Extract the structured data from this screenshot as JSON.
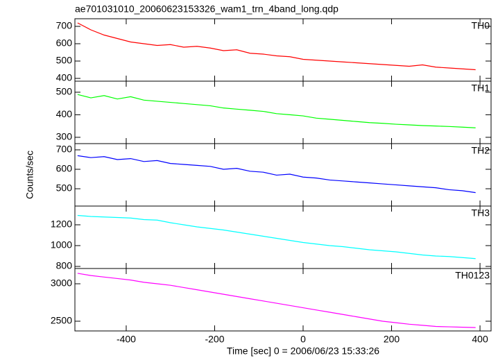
{
  "chart_data": [
    {
      "type": "line",
      "title": "ae701031010_20060623153326_wam1_trn_4band_long.qdp",
      "label": "TH0",
      "color": "#ff0000",
      "x": [
        -510,
        -480,
        -450,
        -420,
        -390,
        -360,
        -330,
        -300,
        -270,
        -240,
        -210,
        -180,
        -150,
        -120,
        -90,
        -60,
        -30,
        0,
        30,
        60,
        90,
        120,
        150,
        180,
        210,
        240,
        270,
        300,
        330,
        360,
        390
      ],
      "values": [
        720,
        680,
        650,
        630,
        610,
        600,
        590,
        595,
        580,
        585,
        575,
        560,
        565,
        545,
        540,
        530,
        525,
        510,
        505,
        500,
        495,
        490,
        485,
        480,
        475,
        470,
        478,
        465,
        460,
        455,
        450
      ],
      "xlim": [
        -516,
        425
      ],
      "xticks": [
        -400,
        -200,
        0,
        200,
        400
      ],
      "ylim": [
        384,
        744
      ],
      "yticks": [
        400,
        500,
        600,
        700
      ]
    },
    {
      "type": "line",
      "label": "TH1",
      "color": "#00ff00",
      "x": [
        -510,
        -480,
        -450,
        -420,
        -390,
        -360,
        -330,
        -300,
        -270,
        -240,
        -210,
        -180,
        -150,
        -120,
        -90,
        -60,
        -30,
        0,
        30,
        60,
        90,
        120,
        150,
        180,
        210,
        240,
        270,
        300,
        330,
        360,
        390
      ],
      "values": [
        490,
        475,
        485,
        470,
        480,
        465,
        460,
        455,
        450,
        445,
        440,
        430,
        425,
        420,
        415,
        405,
        400,
        395,
        385,
        380,
        375,
        370,
        365,
        362,
        358,
        355,
        352,
        350,
        348,
        345,
        342
      ],
      "xlim": [
        -516,
        425
      ],
      "xticks": [
        -400,
        -200,
        0,
        200,
        400
      ],
      "ylim": [
        272,
        549
      ],
      "yticks": [
        300,
        400,
        500
      ]
    },
    {
      "type": "line",
      "label": "TH2",
      "color": "#0000ff",
      "y_label": "Counts/sec",
      "x": [
        -510,
        -480,
        -450,
        -420,
        -390,
        -360,
        -330,
        -300,
        -270,
        -240,
        -210,
        -180,
        -150,
        -120,
        -90,
        -60,
        -30,
        0,
        30,
        60,
        90,
        120,
        150,
        180,
        210,
        240,
        270,
        300,
        330,
        360,
        390
      ],
      "values": [
        670,
        660,
        665,
        650,
        655,
        640,
        645,
        630,
        625,
        620,
        615,
        600,
        605,
        590,
        585,
        570,
        575,
        560,
        555,
        545,
        540,
        535,
        530,
        525,
        520,
        515,
        510,
        505,
        495,
        490,
        480
      ],
      "xlim": [
        -516,
        425
      ],
      "xticks": [
        -400,
        -200,
        0,
        200,
        400
      ],
      "ylim": [
        411,
        732
      ],
      "yticks": [
        500,
        600,
        700
      ]
    },
    {
      "type": "line",
      "label": "TH3",
      "color": "#00ffff",
      "x": [
        -510,
        -480,
        -450,
        -420,
        -390,
        -360,
        -330,
        -300,
        -270,
        -240,
        -210,
        -180,
        -150,
        -120,
        -90,
        -60,
        -30,
        0,
        30,
        60,
        90,
        120,
        150,
        180,
        210,
        240,
        270,
        300,
        330,
        360,
        390
      ],
      "values": [
        1290,
        1280,
        1275,
        1270,
        1265,
        1250,
        1245,
        1220,
        1200,
        1180,
        1165,
        1150,
        1130,
        1110,
        1090,
        1070,
        1050,
        1030,
        1015,
        1000,
        990,
        975,
        960,
        950,
        940,
        925,
        910,
        900,
        895,
        885,
        875
      ],
      "xlim": [
        -516,
        425
      ],
      "xticks": [
        -400,
        -200,
        0,
        200,
        400
      ],
      "ylim": [
        780,
        1380
      ],
      "yticks": [
        800,
        1000,
        1200
      ]
    },
    {
      "type": "line",
      "label": "TH0123",
      "color": "#ff00ff",
      "x_label": "Time [sec] 0 = 2006/06/23 15:33:26",
      "x": [
        -510,
        -480,
        -450,
        -420,
        -390,
        -360,
        -330,
        -300,
        -270,
        -240,
        -210,
        -180,
        -150,
        -120,
        -90,
        -60,
        -30,
        0,
        30,
        60,
        90,
        120,
        150,
        180,
        210,
        240,
        270,
        300,
        330,
        360,
        390
      ],
      "values": [
        3140,
        3110,
        3090,
        3070,
        3050,
        3020,
        3000,
        2980,
        2950,
        2920,
        2890,
        2860,
        2830,
        2800,
        2770,
        2740,
        2710,
        2680,
        2650,
        2620,
        2590,
        2560,
        2530,
        2500,
        2480,
        2460,
        2445,
        2430,
        2425,
        2420,
        2415
      ],
      "xlim": [
        -516,
        425
      ],
      "xticks": [
        -400,
        -200,
        0,
        200,
        400
      ],
      "ylim": [
        2370,
        3204
      ],
      "yticks": [
        2500,
        3000
      ]
    }
  ]
}
